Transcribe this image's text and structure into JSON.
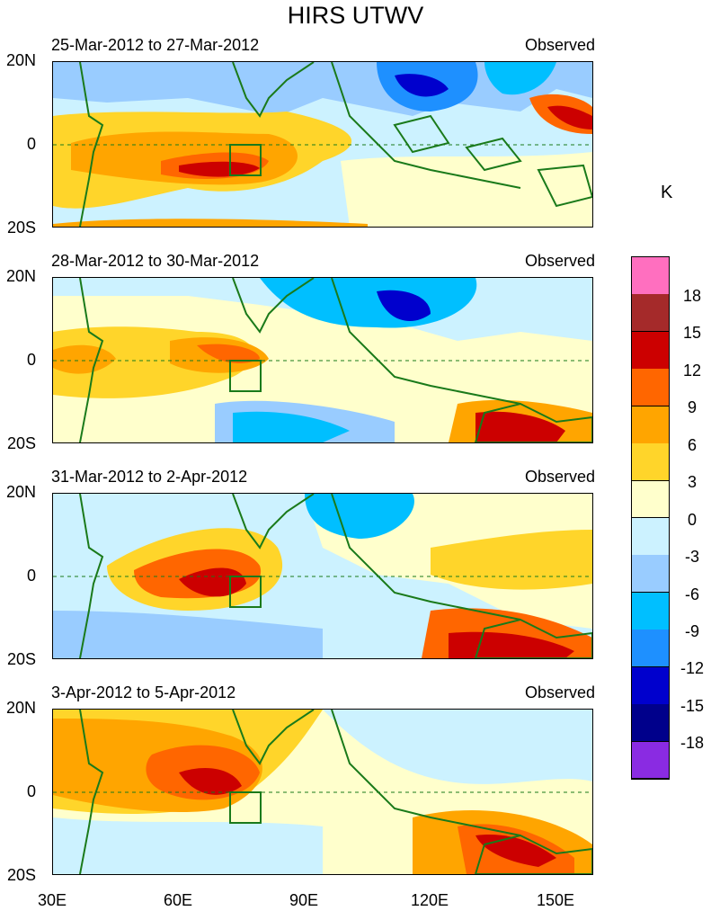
{
  "figure": {
    "title": "HIRS UTWV",
    "unit": "K",
    "panels": [
      {
        "date": "25-Mar-2012 to 27-Mar-2012",
        "tag": "Observed"
      },
      {
        "date": "28-Mar-2012 to 30-Mar-2012",
        "tag": "Observed"
      },
      {
        "date": "31-Mar-2012 to 2-Apr-2012",
        "tag": "Observed"
      },
      {
        "date": "3-Apr-2012 to 5-Apr-2012",
        "tag": "Observed"
      }
    ],
    "lat_labels": [
      "20N",
      "0",
      "20S"
    ],
    "lon_labels": [
      "30E",
      "60E",
      "90E",
      "120E",
      "150E"
    ],
    "colorbar": {
      "labels": [
        "18",
        "15",
        "12",
        "9",
        "6",
        "3",
        "0",
        "-3",
        "-6",
        "-9",
        "-12",
        "-15",
        "-18"
      ],
      "colors": [
        "#ff6fbf",
        "#a52a2a",
        "#cc0000",
        "#ff6600",
        "#ffa500",
        "#ffd52a",
        "#ffffcc",
        "#ccf2ff",
        "#99ccff",
        "#00bfff",
        "#1e90ff",
        "#0000cd",
        "#00008b",
        "#8a2be2"
      ]
    },
    "colors": {
      "coast": "#1a7a1a",
      "equator": "#1a7a1a"
    }
  }
}
